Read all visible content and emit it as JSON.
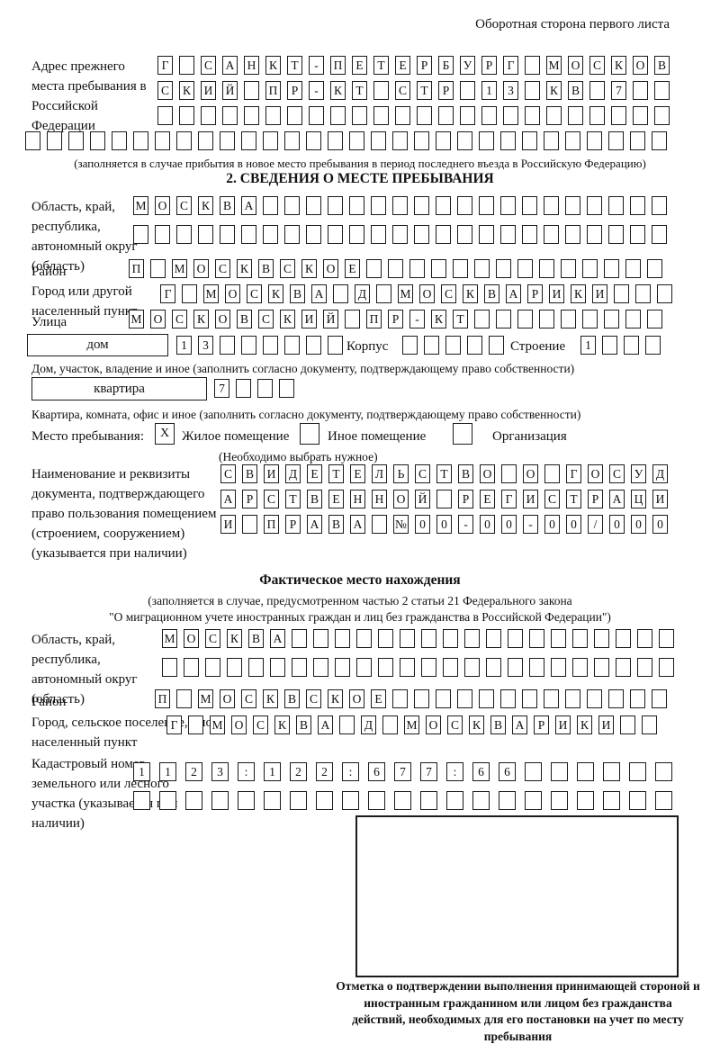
{
  "colors": {
    "ink": "#000000",
    "paper": "#ffffff"
  },
  "header": {
    "side_note": "Оборотная сторона первого листа"
  },
  "prev_address": {
    "label": "Адрес прежнего места пребывания в Российской Федерации",
    "rows": [
      [
        "Г",
        "",
        "С",
        "А",
        "Н",
        "К",
        "Т",
        "-",
        "П",
        "Е",
        "Т",
        "Е",
        "Р",
        "Б",
        "У",
        "Р",
        "Г",
        "",
        "М",
        "О",
        "С",
        "К",
        "О",
        "В"
      ],
      [
        "С",
        "К",
        "И",
        "Й",
        "",
        "П",
        "Р",
        "-",
        "К",
        "Т",
        "",
        "С",
        "Т",
        "Р",
        "",
        "1",
        "3",
        "",
        "К",
        "В",
        "",
        "7",
        "",
        ""
      ],
      [
        "",
        "",
        "",
        "",
        "",
        "",
        "",
        "",
        "",
        "",
        "",
        "",
        "",
        "",
        "",
        "",
        "",
        "",
        "",
        "",
        "",
        "",
        "",
        ""
      ],
      [
        "",
        "",
        "",
        "",
        "",
        "",
        "",
        "",
        "",
        "",
        "",
        "",
        "",
        "",
        "",
        "",
        "",
        "",
        "",
        "",
        "",
        "",
        "",
        "",
        "",
        "",
        "",
        "",
        "",
        ""
      ]
    ],
    "note": "(заполняется в случае прибытия в новое место пребывания в период последнего въезда в Российскую Федерацию)"
  },
  "section2": {
    "title": "2. СВЕДЕНИЯ О МЕСТЕ ПРЕБЫВАНИЯ",
    "region": {
      "label": "Область, край, республика, автономный округ (область)",
      "row1": [
        "М",
        "О",
        "С",
        "К",
        "В",
        "А",
        "",
        "",
        "",
        "",
        "",
        "",
        "",
        "",
        "",
        "",
        "",
        "",
        "",
        "",
        "",
        "",
        "",
        "",
        ""
      ],
      "row2": [
        "",
        "",
        "",
        "",
        "",
        "",
        "",
        "",
        "",
        "",
        "",
        "",
        "",
        "",
        "",
        "",
        "",
        "",
        "",
        "",
        "",
        "",
        "",
        "",
        ""
      ]
    },
    "district": {
      "label": "Район",
      "row": [
        "П",
        "",
        "М",
        "О",
        "С",
        "К",
        "В",
        "С",
        "К",
        "О",
        "Е",
        "",
        "",
        "",
        "",
        "",
        "",
        "",
        "",
        "",
        "",
        "",
        "",
        "",
        ""
      ]
    },
    "city": {
      "label": "Город или другой населенный пункт",
      "row": [
        "Г",
        "",
        "М",
        "О",
        "С",
        "К",
        "В",
        "А",
        "",
        "Д",
        "",
        "М",
        "О",
        "С",
        "К",
        "В",
        "А",
        "Р",
        "И",
        "К",
        "И",
        "",
        "",
        ""
      ]
    },
    "street": {
      "label": "Улица",
      "row": [
        "М",
        "О",
        "С",
        "К",
        "О",
        "В",
        "С",
        "К",
        "И",
        "Й",
        "",
        "П",
        "Р",
        "-",
        "К",
        "Т",
        "",
        "",
        "",
        "",
        "",
        "",
        "",
        "",
        ""
      ]
    },
    "house": {
      "label": "дом",
      "cells": [
        "1",
        "3",
        "",
        "",
        "",
        "",
        "",
        ""
      ],
      "korpus_label": "Корпус",
      "korpus_cells": [
        "",
        "",
        "",
        "",
        ""
      ],
      "stroenie_label": "Строение",
      "stroenie_cells": [
        "1",
        "",
        "",
        ""
      ],
      "note": "Дом, участок, владение и иное (заполнить согласно документу, подтверждающему право собственности)"
    },
    "apartment": {
      "label": "квартира",
      "cells": [
        "7",
        "",
        "",
        ""
      ],
      "note": "Квартира, комната, офис и иное (заполнить согласно документу, подтверждающему право собственности)"
    },
    "stay": {
      "label": "Место пребывания:",
      "note": "(Необходимо выбрать нужное)",
      "options": [
        {
          "label": "Жилое помещение",
          "mark": "X"
        },
        {
          "label": "Иное помещение",
          "mark": ""
        },
        {
          "label": "Организация",
          "mark": ""
        }
      ]
    },
    "document": {
      "label": "Наименование и реквизиты документа, подтверждающего право пользования помещением (строением, сооружением) (указывается при наличии)",
      "rows": [
        [
          "С",
          "В",
          "И",
          "Д",
          "Е",
          "Т",
          "Е",
          "Л",
          "Ь",
          "С",
          "Т",
          "В",
          "О",
          "",
          "О",
          "",
          "Г",
          "О",
          "С",
          "У",
          "Д"
        ],
        [
          "А",
          "Р",
          "С",
          "Т",
          "В",
          "Е",
          "Н",
          "Н",
          "О",
          "Й",
          "",
          "Р",
          "Е",
          "Г",
          "И",
          "С",
          "Т",
          "Р",
          "А",
          "Ц",
          "И"
        ],
        [
          "И",
          "",
          "П",
          "Р",
          "А",
          "В",
          "А",
          "",
          "№",
          "0",
          "0",
          "-",
          "0",
          "0",
          "-",
          "0",
          "0",
          "/",
          "0",
          "0",
          "0"
        ]
      ]
    }
  },
  "actual": {
    "title": "Фактическое место нахождения",
    "note_line1": "(заполняется в случае, предусмотренном частью 2 статьи 21 Федерального закона",
    "note_line2": "\"О миграционном учете иностранных граждан и лиц без гражданства в Российской Федерации\")",
    "region": {
      "label": "Область, край, республика, автономный округ (область)",
      "row1": [
        "М",
        "О",
        "С",
        "К",
        "В",
        "А",
        "",
        "",
        "",
        "",
        "",
        "",
        "",
        "",
        "",
        "",
        "",
        "",
        "",
        "",
        "",
        "",
        "",
        ""
      ],
      "row2": [
        "",
        "",
        "",
        "",
        "",
        "",
        "",
        "",
        "",
        "",
        "",
        "",
        "",
        "",
        "",
        "",
        "",
        "",
        "",
        "",
        "",
        "",
        "",
        ""
      ]
    },
    "district": {
      "label": "Район",
      "row": [
        "П",
        "",
        "М",
        "О",
        "С",
        "К",
        "В",
        "С",
        "К",
        "О",
        "Е",
        "",
        "",
        "",
        "",
        "",
        "",
        "",
        "",
        "",
        "",
        "",
        "",
        ""
      ]
    },
    "city": {
      "label": "Город, сельское поселение, иной населенный пункт",
      "row": [
        "Г",
        "",
        "М",
        "О",
        "С",
        "К",
        "В",
        "А",
        "",
        "Д",
        "",
        "М",
        "О",
        "С",
        "К",
        "В",
        "А",
        "Р",
        "И",
        "К",
        "И",
        "",
        ""
      ]
    },
    "cadastre": {
      "label": "Кадастровый номер земельного или лесного участка (указывается при наличии)",
      "rows": [
        [
          "1",
          "1",
          "2",
          "3",
          ":",
          "1",
          "2",
          "2",
          ":",
          "6",
          "7",
          "7",
          ":",
          "6",
          "6",
          "",
          "",
          "",
          "",
          "",
          ""
        ],
        [
          "",
          "",
          "",
          "",
          "",
          "",
          "",
          "",
          "",
          "",
          "",
          "",
          "",
          "",
          "",
          "",
          "",
          "",
          "",
          "",
          ""
        ]
      ]
    }
  },
  "stamp": {
    "caption": "Отметка о подтверждении выполнения принимающей стороной и иностранным гражданином или лицом без гражданства действий, необходимых для его постановки на учет по месту пребывания"
  }
}
